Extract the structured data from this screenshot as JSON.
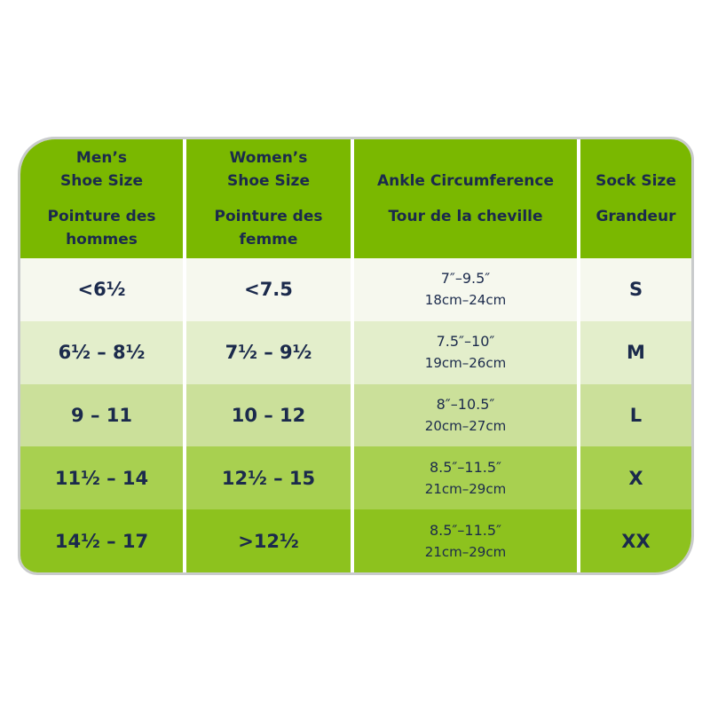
{
  "headers": [
    {
      "en": [
        "Men’s",
        "Shoe Size"
      ],
      "fr": [
        "Pointure des",
        "hommes"
      ]
    },
    {
      "en": [
        "Women’s",
        "Shoe Size"
      ],
      "fr": [
        "Pointure des",
        "femme"
      ]
    },
    {
      "en": [
        "Ankle Circumference"
      ],
      "fr": [
        "Tour de la cheville"
      ]
    },
    {
      "en": [
        "Sock Size"
      ],
      "fr": [
        "Grandeur"
      ]
    }
  ],
  "rows": [
    {
      "men": "<6½",
      "women": "<7.5",
      "ankle_in": "7″–9.5″",
      "ankle_cm": "18cm–24cm",
      "sock": "S"
    },
    {
      "men": "6½ – 8½",
      "women": "7½ – 9½",
      "ankle_in": "7.5″–10″",
      "ankle_cm": "19cm–26cm",
      "sock": "M"
    },
    {
      "men": "9 – 11",
      "women": "10 – 12",
      "ankle_in": "8″–10.5″",
      "ankle_cm": "20cm–27cm",
      "sock": "L"
    },
    {
      "men": "11½ – 14",
      "women": "12½ – 15",
      "ankle_in": "8.5″–11.5″",
      "ankle_cm": "21cm–29cm",
      "sock": "X"
    },
    {
      "men": "14½ – 17",
      "women": ">12½",
      "ankle_in": "8.5″–11.5″",
      "ankle_cm": "21cm–29cm",
      "sock": "XX"
    }
  ],
  "colors": {
    "header": "#7ab800",
    "rows": [
      "#f6f8ee",
      "#e3eecb",
      "#cbe09a",
      "#a8d050",
      "#8dc21e"
    ],
    "text": "#1b2a4c"
  }
}
